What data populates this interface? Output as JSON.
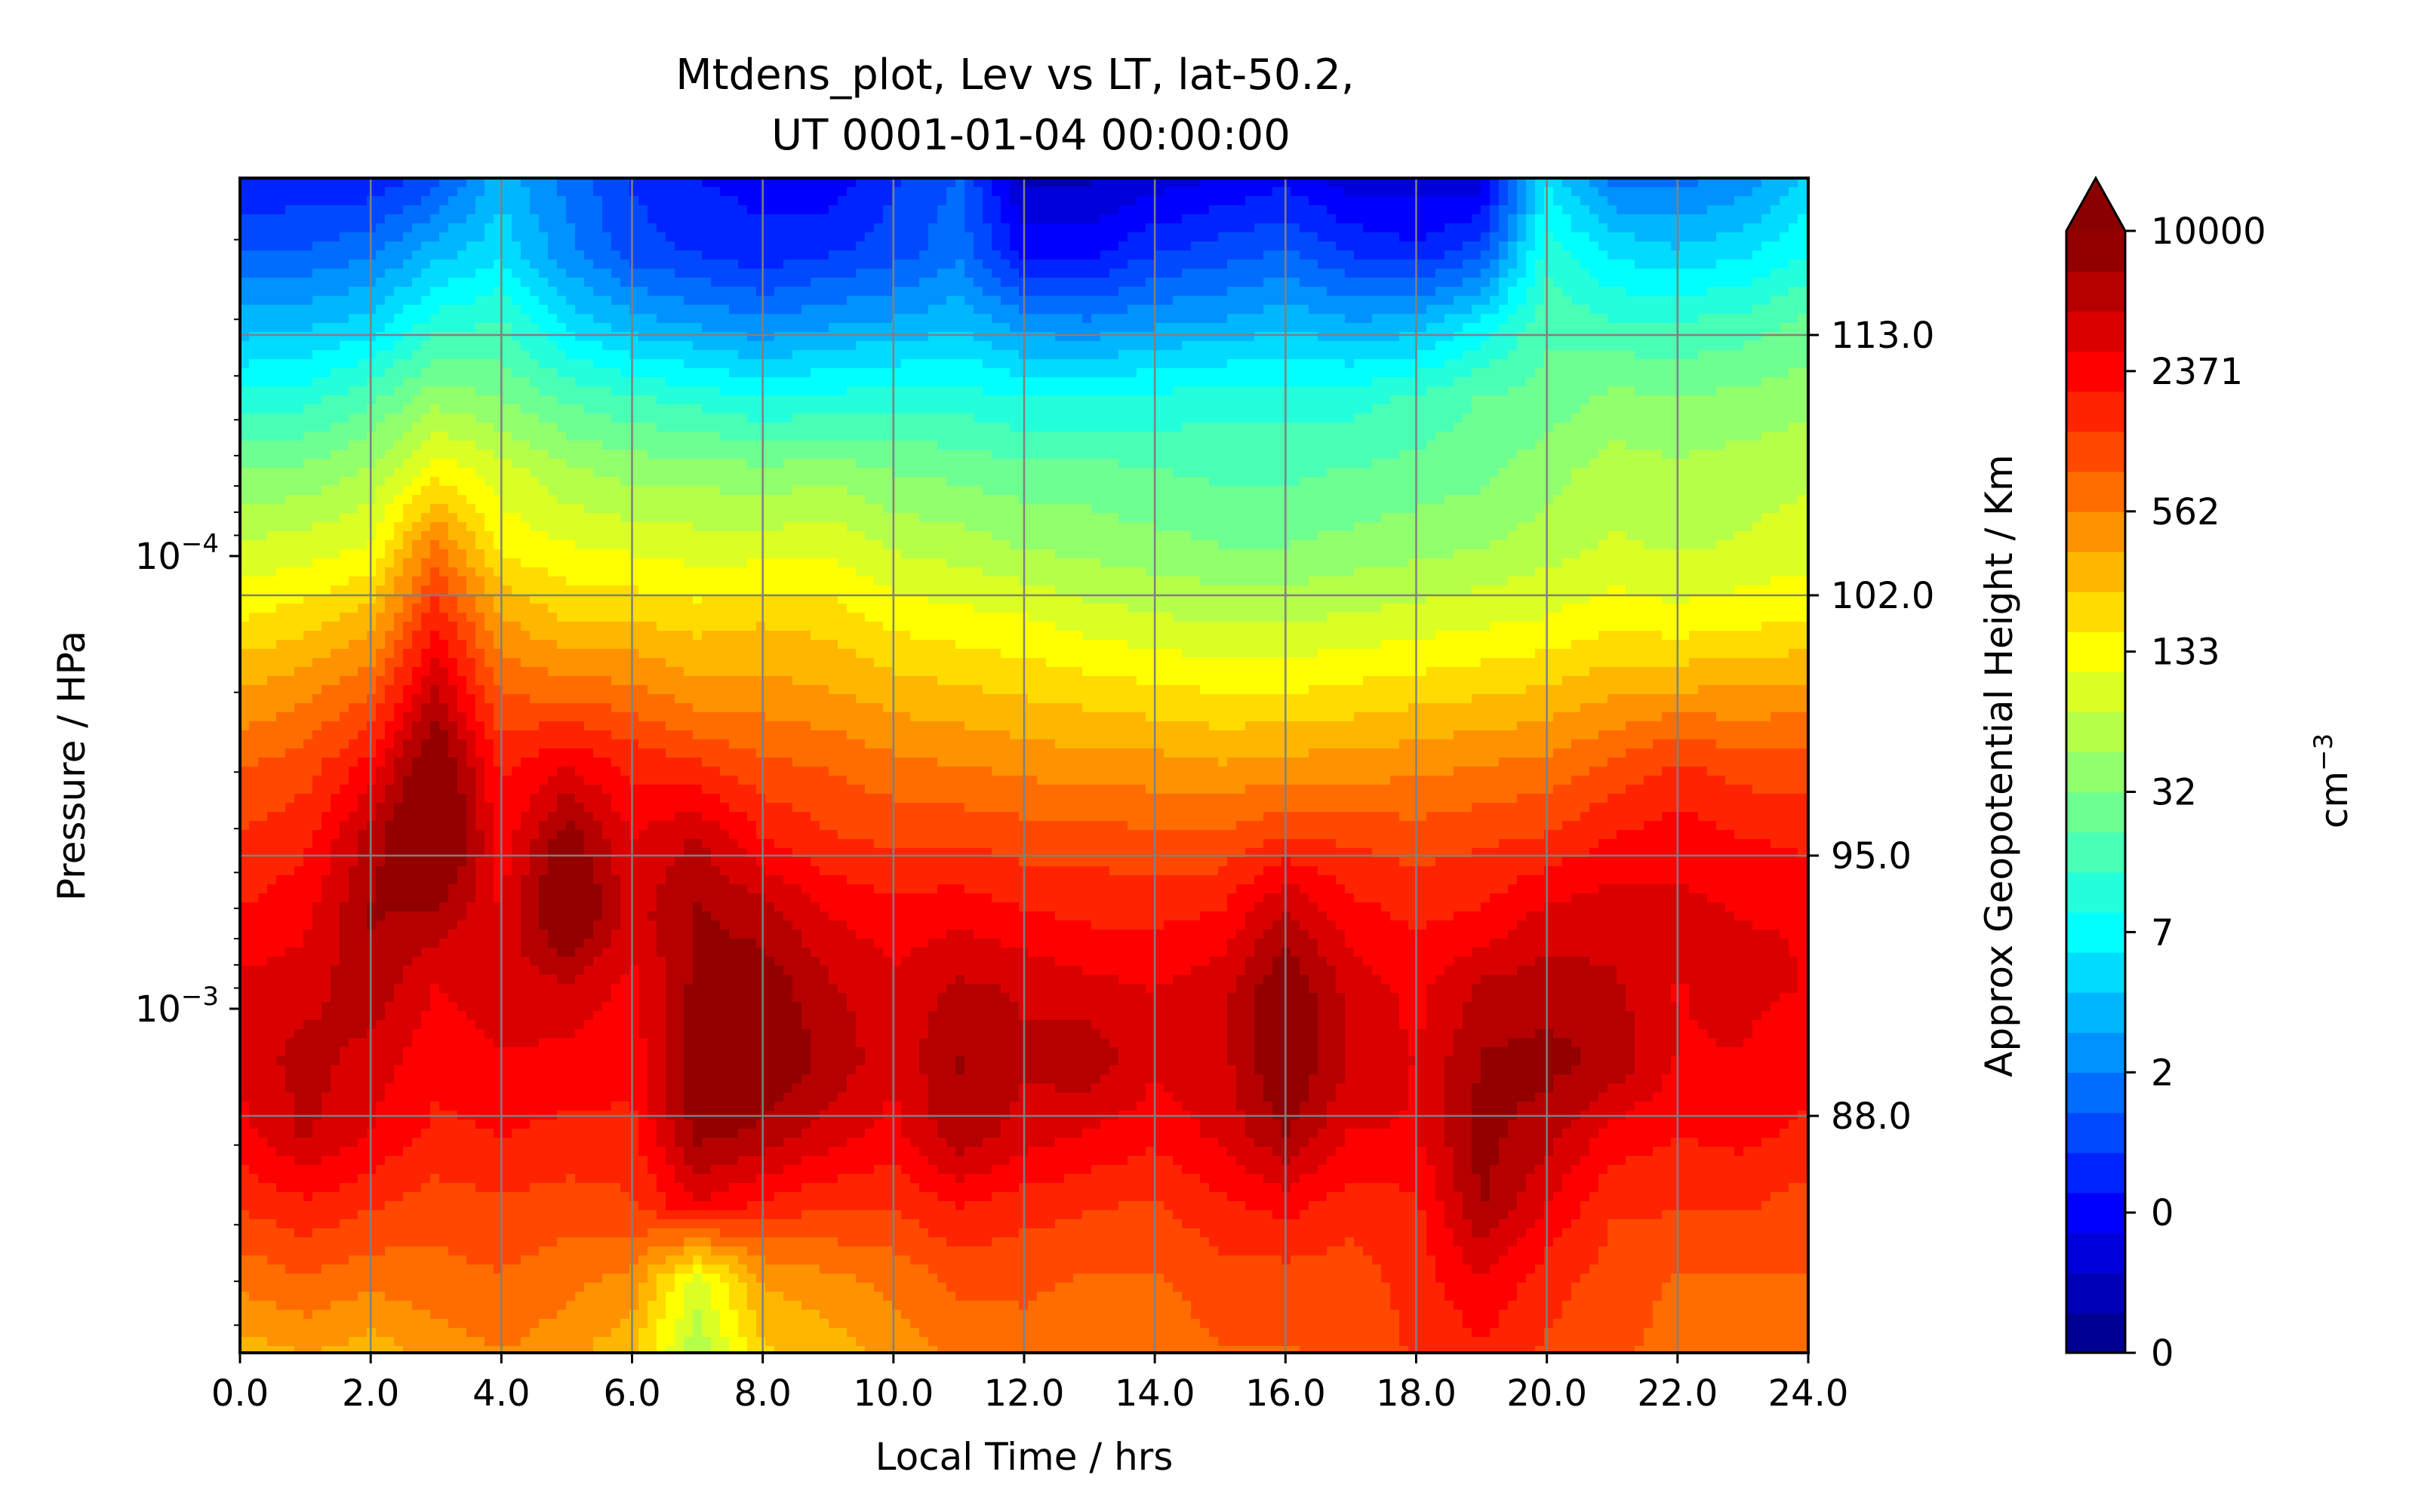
{
  "chart_data": {
    "type": "heatmap",
    "subtype": "filled-contour",
    "title_line1": "Mtdens_plot, Lev vs LT, lat-50.2,",
    "title_line2": "UT 0001-01-04 00:00:00",
    "xlabel": "Local Time / hrs",
    "ylabel": "Pressure / HPa",
    "y2label": "Approx Geopotential Height / Km",
    "colorbar_label": "cm",
    "colorbar_label_exponent": "−3",
    "colormap": "jet",
    "xlim": [
      0,
      24
    ],
    "x_ticks": [
      "0.0",
      "2.0",
      "4.0",
      "6.0",
      "8.0",
      "10.0",
      "12.0",
      "14.0",
      "16.0",
      "18.0",
      "20.0",
      "22.0",
      "24.0"
    ],
    "y_scale": "log",
    "y_axis_inverted": true,
    "y_ticks": [
      {
        "base": "10",
        "exp": "−4",
        "pressure": 0.0001
      },
      {
        "base": "10",
        "exp": "−3",
        "pressure": 0.001
      }
    ],
    "y2_ticks": [
      "113.0",
      "102.0",
      "95.0",
      "88.0"
    ],
    "colorbar_ticks": [
      "10000",
      "2371",
      "562",
      "133",
      "32",
      "7",
      "2",
      "0",
      "0"
    ],
    "colorbar_extend": "max",
    "grid": true,
    "grid_color": "#808080",
    "field": {
      "description_levels": "log10 density (cm^-3), rows from top of plot to bottom",
      "x": [
        0,
        1,
        2,
        3,
        4,
        5,
        6,
        7,
        8,
        9,
        10,
        11,
        12,
        13,
        14,
        15,
        16,
        17,
        18,
        19,
        20,
        21,
        22,
        23,
        24
      ],
      "rows": [
        [
          0.05,
          0.1,
          0.1,
          0.3,
          0.8,
          0.5,
          0.2,
          0.05,
          0.0,
          -0.05,
          0.2,
          0.4,
          -0.3,
          -0.3,
          -0.2,
          -0.1,
          0.0,
          -0.2,
          -0.2,
          -0.2,
          1.0,
          0.5,
          0.5,
          0.6,
          0.9
        ],
        [
          0.4,
          0.4,
          0.5,
          0.8,
          1.0,
          0.6,
          0.3,
          0.2,
          0.1,
          0.2,
          0.3,
          0.5,
          0.0,
          0.0,
          0.2,
          0.3,
          0.4,
          0.2,
          0.1,
          0.3,
          1.3,
          1.0,
          0.9,
          1.0,
          1.2
        ],
        [
          0.8,
          0.85,
          0.95,
          1.3,
          1.4,
          1.0,
          0.8,
          0.7,
          0.6,
          0.7,
          0.75,
          0.85,
          0.65,
          0.6,
          0.7,
          0.75,
          0.85,
          0.75,
          0.8,
          1.1,
          1.5,
          1.4,
          1.4,
          1.45,
          1.6
        ],
        [
          1.25,
          1.3,
          1.5,
          1.8,
          1.7,
          1.5,
          1.4,
          1.3,
          1.2,
          1.25,
          1.3,
          1.3,
          1.2,
          1.2,
          1.25,
          1.3,
          1.3,
          1.3,
          1.4,
          1.55,
          1.6,
          1.75,
          1.7,
          1.75,
          1.8
        ],
        [
          1.7,
          1.75,
          1.9,
          2.3,
          2.1,
          1.9,
          1.8,
          1.8,
          1.75,
          1.8,
          1.7,
          1.65,
          1.6,
          1.6,
          1.55,
          1.5,
          1.5,
          1.55,
          1.6,
          1.65,
          1.8,
          1.95,
          1.9,
          1.95,
          2.0
        ],
        [
          2.05,
          2.1,
          2.2,
          2.9,
          2.3,
          2.2,
          2.15,
          2.1,
          2.1,
          2.15,
          2.0,
          1.95,
          1.85,
          1.8,
          1.75,
          1.7,
          1.7,
          1.75,
          1.8,
          1.85,
          1.95,
          2.05,
          2.0,
          2.05,
          2.1
        ],
        [
          2.35,
          2.45,
          2.6,
          3.3,
          2.7,
          2.5,
          2.5,
          2.45,
          2.5,
          2.45,
          2.3,
          2.25,
          2.2,
          2.1,
          2.05,
          2.0,
          2.0,
          2.05,
          2.1,
          2.15,
          2.2,
          2.3,
          2.25,
          2.3,
          2.35
        ],
        [
          2.7,
          2.8,
          3.0,
          3.7,
          3.0,
          2.95,
          2.9,
          2.75,
          2.75,
          2.7,
          2.6,
          2.55,
          2.5,
          2.45,
          2.4,
          2.35,
          2.35,
          2.4,
          2.45,
          2.5,
          2.55,
          2.65,
          2.7,
          2.7,
          2.75
        ],
        [
          3.0,
          3.1,
          3.4,
          4.1,
          3.3,
          3.5,
          3.3,
          3.2,
          3.05,
          3.0,
          2.9,
          2.85,
          2.8,
          2.75,
          2.75,
          2.7,
          2.75,
          2.75,
          2.8,
          2.85,
          2.9,
          3.05,
          3.2,
          3.1,
          3.1
        ],
        [
          3.2,
          3.3,
          3.75,
          4.3,
          3.4,
          3.95,
          3.5,
          3.7,
          3.35,
          3.2,
          3.15,
          3.15,
          3.1,
          3.1,
          3.05,
          3.05,
          3.2,
          3.15,
          3.1,
          3.15,
          3.2,
          3.35,
          3.45,
          3.35,
          3.3
        ],
        [
          3.35,
          3.45,
          3.85,
          3.8,
          3.5,
          4.15,
          3.6,
          3.85,
          3.75,
          3.5,
          3.4,
          3.45,
          3.35,
          3.3,
          3.3,
          3.35,
          3.7,
          3.4,
          3.3,
          3.35,
          3.55,
          3.6,
          3.55,
          3.5,
          3.5
        ],
        [
          3.55,
          3.6,
          3.8,
          3.5,
          3.6,
          3.65,
          3.45,
          3.9,
          3.95,
          3.7,
          3.55,
          3.7,
          3.65,
          3.55,
          3.5,
          3.6,
          4.0,
          3.6,
          3.45,
          3.7,
          3.75,
          3.7,
          3.5,
          3.55,
          3.5
        ],
        [
          3.55,
          3.75,
          3.6,
          3.4,
          3.5,
          3.45,
          3.4,
          4.0,
          4.0,
          3.8,
          3.55,
          3.85,
          3.7,
          3.8,
          3.55,
          3.6,
          4.05,
          3.65,
          3.5,
          3.85,
          3.9,
          3.8,
          3.5,
          3.5,
          3.4
        ],
        [
          3.45,
          3.7,
          3.5,
          3.3,
          3.35,
          3.3,
          3.3,
          3.9,
          3.8,
          3.6,
          3.45,
          3.8,
          3.6,
          3.5,
          3.4,
          3.55,
          3.85,
          3.5,
          3.5,
          3.9,
          3.75,
          3.45,
          3.35,
          3.4,
          3.3
        ],
        [
          3.2,
          3.3,
          3.2,
          3.1,
          3.15,
          3.1,
          3.15,
          3.5,
          3.3,
          3.2,
          3.2,
          3.35,
          3.25,
          3.2,
          3.15,
          3.3,
          3.4,
          3.25,
          3.3,
          3.85,
          3.5,
          3.2,
          3.2,
          3.2,
          3.1
        ],
        [
          2.9,
          3.0,
          2.9,
          2.95,
          3.0,
          2.9,
          2.8,
          2.1,
          2.7,
          2.8,
          2.9,
          3.05,
          3.05,
          3.0,
          3.0,
          3.1,
          3.1,
          3.1,
          3.25,
          3.5,
          3.25,
          3.1,
          3.0,
          3.0,
          3.0
        ],
        [
          2.6,
          2.7,
          2.6,
          2.75,
          2.85,
          2.75,
          2.55,
          1.9,
          2.5,
          2.6,
          2.75,
          2.9,
          2.95,
          2.9,
          2.9,
          3.0,
          3.0,
          3.05,
          3.2,
          3.3,
          3.15,
          3.05,
          2.95,
          2.9,
          2.9
        ]
      ]
    }
  }
}
